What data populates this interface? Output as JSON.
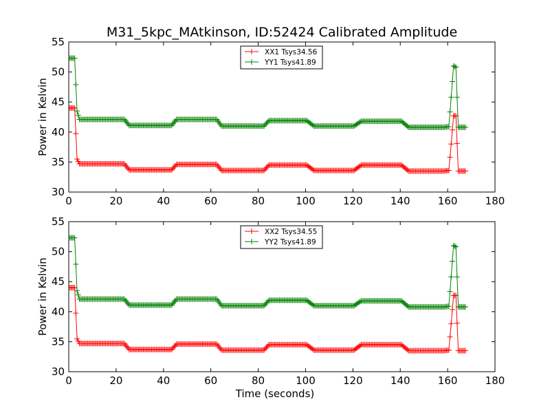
{
  "figure": {
    "title": "M31_5kpc_MAtkinson, ID:52424 Calibrated Amplitude"
  },
  "chart_data": [
    {
      "type": "line",
      "xlabel": "",
      "ylabel": "Power in Kelvin",
      "xlim": [
        0,
        180
      ],
      "ylim": [
        30,
        55
      ],
      "xticks": [
        "0",
        "20",
        "40",
        "60",
        "80",
        "100",
        "120",
        "140",
        "160",
        "180"
      ],
      "yticks": [
        "30",
        "35",
        "40",
        "45",
        "50",
        "55"
      ],
      "legend_position": "top-center",
      "marker": "plus",
      "series": [
        {
          "name": "XX1 Tsys34.56",
          "color": "#ff0000",
          "x": [
            0.5,
            2.5,
            3.5,
            4.5,
            23.5,
            25.5,
            43.5,
            45.5,
            62.5,
            64.5,
            82.5,
            84.5,
            100.5,
            103.5,
            120.5,
            123.5,
            140.5,
            143.5,
            158.5,
            160.5,
            161.5,
            162.5,
            163.5,
            164.5,
            167.5
          ],
          "y": [
            44.0,
            44.0,
            35.5,
            34.7,
            34.7,
            33.7,
            33.7,
            34.6,
            34.6,
            33.6,
            33.6,
            34.5,
            34.5,
            33.6,
            33.6,
            34.5,
            34.5,
            33.5,
            33.5,
            33.6,
            38.0,
            42.7,
            42.7,
            33.5,
            33.5
          ]
        },
        {
          "name": "YY1 Tsys41.89",
          "color": "#008000",
          "x": [
            0.5,
            2.5,
            3.5,
            4.5,
            23.5,
            25.5,
            43.5,
            45.5,
            62.5,
            64.5,
            82.5,
            84.5,
            100.5,
            103.5,
            120.5,
            123.5,
            140.5,
            143.5,
            158.5,
            160.5,
            161.5,
            162.5,
            163.5,
            164.5,
            167.5
          ],
          "y": [
            52.3,
            52.3,
            43.5,
            42.1,
            42.1,
            41.1,
            41.1,
            42.1,
            42.1,
            41.0,
            41.0,
            41.9,
            41.9,
            41.0,
            41.0,
            41.8,
            41.8,
            40.8,
            40.8,
            40.9,
            45.8,
            51.0,
            50.8,
            40.8,
            40.8
          ]
        }
      ]
    },
    {
      "type": "line",
      "xlabel": "Time (seconds)",
      "ylabel": "Power in Kelvin",
      "xlim": [
        0,
        180
      ],
      "ylim": [
        30,
        55
      ],
      "xticks": [
        "0",
        "20",
        "40",
        "60",
        "80",
        "100",
        "120",
        "140",
        "160",
        "180"
      ],
      "yticks": [
        "30",
        "35",
        "40",
        "45",
        "50",
        "55"
      ],
      "legend_position": "top-center",
      "marker": "plus",
      "series": [
        {
          "name": "XX2 Tsys34.55",
          "color": "#ff0000",
          "x": [
            0.5,
            2.5,
            3.5,
            4.5,
            23.5,
            25.5,
            43.5,
            45.5,
            62.5,
            64.5,
            82.5,
            84.5,
            100.5,
            103.5,
            120.5,
            123.5,
            140.5,
            143.5,
            158.5,
            160.5,
            161.5,
            162.5,
            163.5,
            164.5,
            167.5
          ],
          "y": [
            44.0,
            44.0,
            35.5,
            34.7,
            34.7,
            33.7,
            33.7,
            34.6,
            34.6,
            33.6,
            33.6,
            34.5,
            34.5,
            33.6,
            33.6,
            34.5,
            34.5,
            33.5,
            33.5,
            33.6,
            38.0,
            42.7,
            42.7,
            33.5,
            33.5
          ]
        },
        {
          "name": "YY2 Tsys41.89",
          "color": "#008000",
          "x": [
            0.5,
            2.5,
            3.5,
            4.5,
            23.5,
            25.5,
            43.5,
            45.5,
            62.5,
            64.5,
            82.5,
            84.5,
            100.5,
            103.5,
            120.5,
            123.5,
            140.5,
            143.5,
            158.5,
            160.5,
            161.5,
            162.5,
            163.5,
            164.5,
            167.5
          ],
          "y": [
            52.3,
            52.3,
            43.5,
            42.1,
            42.1,
            41.1,
            41.1,
            42.1,
            42.1,
            41.0,
            41.0,
            41.9,
            41.9,
            41.0,
            41.0,
            41.8,
            41.8,
            40.8,
            40.8,
            40.9,
            45.8,
            51.0,
            50.8,
            40.8,
            40.8
          ]
        }
      ]
    }
  ]
}
